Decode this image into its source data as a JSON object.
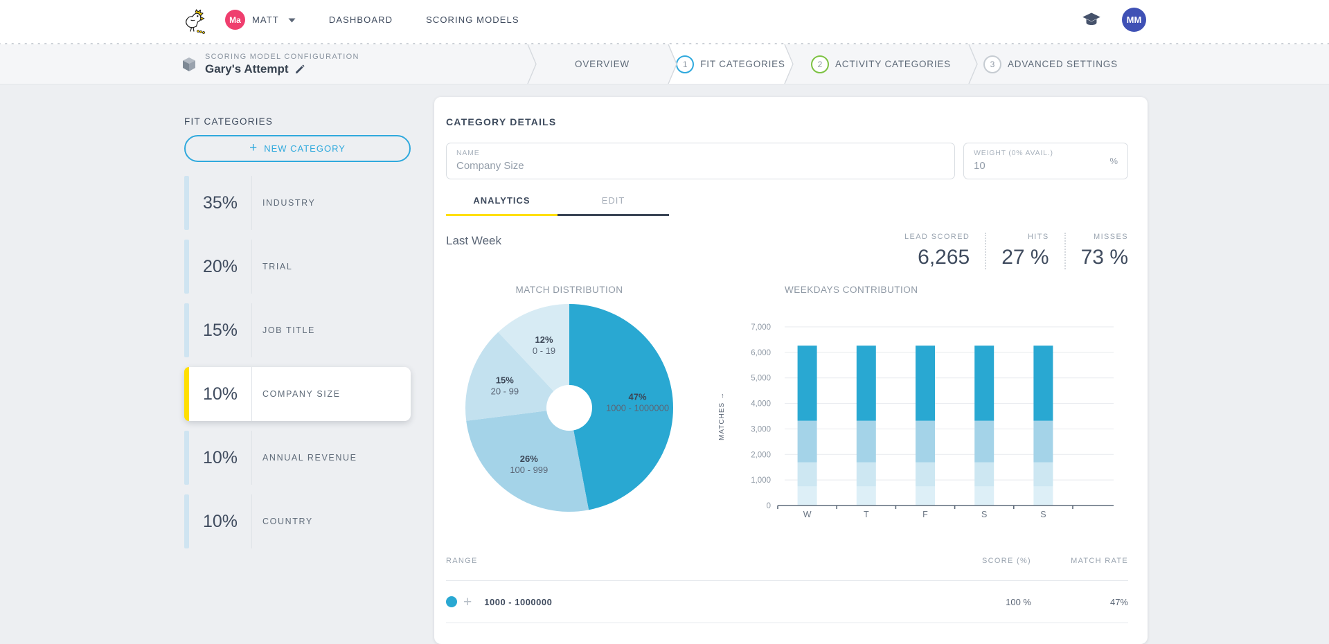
{
  "navbar": {
    "user_avatar_initials": "Ma",
    "user_name": "MATT",
    "links": [
      {
        "label": "DASHBOARD"
      },
      {
        "label": "SCORING MODELS"
      }
    ],
    "account_avatar_initials": "MM"
  },
  "breadcrumb": {
    "kicker": "SCORING MODEL CONFIGURATION",
    "title": "Gary's Attempt"
  },
  "steps": [
    {
      "number": "",
      "label": "OVERVIEW",
      "circle_color": ""
    },
    {
      "number": "1",
      "label": "FIT CATEGORIES",
      "circle_color": "#2fa9dd",
      "active": true
    },
    {
      "number": "2",
      "label": "ACTIVITY CATEGORIES",
      "circle_color": "#7dc243"
    },
    {
      "number": "3",
      "label": "ADVANCED SETTINGS",
      "circle_color": "#c6ccd2"
    }
  ],
  "sidebar": {
    "title": "FIT CATEGORIES",
    "new_category_button": "NEW CATEGORY",
    "items": [
      {
        "pct": "35%",
        "label": "INDUSTRY",
        "selected": false
      },
      {
        "pct": "20%",
        "label": "TRIAL",
        "selected": false
      },
      {
        "pct": "15%",
        "label": "JOB TITLE",
        "selected": false
      },
      {
        "pct": "10%",
        "label": "COMPANY SIZE",
        "selected": true
      },
      {
        "pct": "10%",
        "label": "ANNUAL REVENUE",
        "selected": false
      },
      {
        "pct": "10%",
        "label": "COUNTRY",
        "selected": false
      }
    ]
  },
  "details": {
    "title": "CATEGORY DETAILS",
    "name_field": {
      "label": "NAME",
      "value": "Company Size"
    },
    "weight_field": {
      "label": "WEIGHT (0% AVAIL.)",
      "value": "10",
      "suffix": "%"
    },
    "tabs": [
      {
        "label": "ANALYTICS",
        "active": true
      },
      {
        "label": "EDIT",
        "active": false
      }
    ],
    "period": "Last Week",
    "stats": [
      {
        "label": "LEAD SCORED",
        "value": "6,265"
      },
      {
        "label": "HITS",
        "value": "27 %"
      },
      {
        "label": "MISSES",
        "value": "73 %"
      }
    ]
  },
  "chart_data": [
    {
      "type": "pie",
      "donut": true,
      "title": "MATCH DISTRIBUTION",
      "start_angle": "12-o-clock",
      "direction": "clockwise",
      "slices": [
        {
          "label": "1000 - 1000000",
          "pct": 47,
          "color": "#29a8d2"
        },
        {
          "label": "100 - 999",
          "pct": 26,
          "color": "#a4d3e8"
        },
        {
          "label": "20 - 99",
          "pct": 15,
          "color": "#c3e1ef"
        },
        {
          "label": "0 - 19",
          "pct": 12,
          "color": "#d7ebf4"
        }
      ]
    },
    {
      "type": "bar",
      "stacked": true,
      "title": "WEEKDAYS CONTRIBUTION",
      "categories": [
        "W",
        "T",
        "F",
        "S",
        "S"
      ],
      "series": [
        {
          "name": "0 - 19",
          "color": "#ddeff7",
          "values": [
            750,
            750,
            750,
            750,
            750
          ]
        },
        {
          "name": "20 - 99",
          "color": "#cde7f2",
          "values": [
            940,
            940,
            940,
            940,
            940
          ]
        },
        {
          "name": "100 - 999",
          "color": "#a4d3e8",
          "values": [
            1630,
            1630,
            1630,
            1630,
            1630
          ]
        },
        {
          "name": "1000 - 1000000",
          "color": "#29a8d2",
          "values": [
            2945,
            2945,
            2945,
            2945,
            2945
          ]
        }
      ],
      "ylabel": "MATCHES",
      "ylim": [
        0,
        7000
      ],
      "yticks": [
        0,
        1000,
        2000,
        3000,
        4000,
        5000,
        6000,
        7000
      ],
      "grid": true,
      "legend": "none"
    }
  ],
  "table": {
    "headers": [
      "RANGE",
      "SCORE (%)",
      "MATCH RATE"
    ],
    "rows": [
      {
        "range": "1000 - 1000000",
        "score": "100 %",
        "match_rate": "47%",
        "dot_color": "#29a8d2"
      }
    ]
  },
  "colors": {
    "accent_yellow": "#ffdf00",
    "accent_cyan": "#2fa9dd",
    "brand_pink": "#ef3e6e",
    "avatar_indigo": "#3f51b5",
    "chart_blue": "#29a8d2",
    "sidebar_accent_blue": "#cfe4f1"
  }
}
